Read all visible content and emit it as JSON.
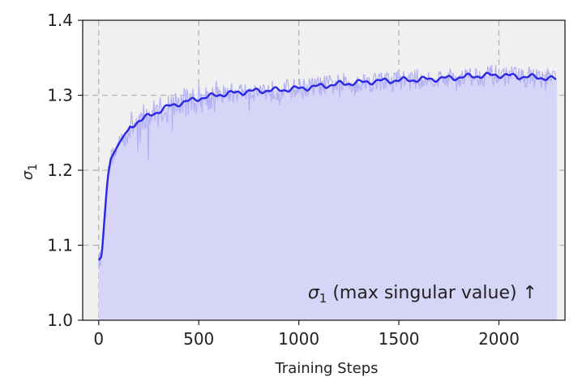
{
  "chart_data": {
    "type": "line",
    "xlabel": "Training Steps",
    "ylabel_symbol": "σ",
    "ylabel_subscript": "1",
    "annotation": {
      "symbol": "σ",
      "subscript": "1",
      "text": " (max singular value)  ↑"
    },
    "xlim": [
      -80,
      2330
    ],
    "ylim": [
      1.0,
      1.4
    ],
    "xticks": [
      0,
      500,
      1000,
      1500,
      2000
    ],
    "yticks": [
      1.0,
      1.1,
      1.2,
      1.3,
      1.4
    ],
    "xtick_labels": [
      "0",
      "500",
      "1000",
      "1500",
      "2000"
    ],
    "ytick_labels": [
      "1.0",
      "1.1",
      "1.2",
      "1.3",
      "1.4"
    ],
    "grid": true,
    "colors": {
      "background": "#f0f0f0",
      "fill": "#d6d4f7",
      "raw_line": "#b3b0f5",
      "smoothed_line": "#2a28e6",
      "grid": "#b5b5b5"
    },
    "series": [
      {
        "x": [
          0,
          15,
          30,
          45,
          60,
          80,
          100,
          130,
          160,
          200,
          250,
          300,
          350,
          400,
          450,
          500,
          550,
          600,
          650,
          700,
          800,
          900,
          1000,
          1100,
          1200,
          1300,
          1400,
          1500,
          1600,
          1700,
          1800,
          1900,
          2000,
          2100,
          2200,
          2290
        ],
        "y": [
          1.08,
          1.085,
          1.14,
          1.19,
          1.215,
          1.225,
          1.235,
          1.248,
          1.258,
          1.266,
          1.272,
          1.279,
          1.285,
          1.289,
          1.292,
          1.296,
          1.298,
          1.301,
          1.302,
          1.304,
          1.306,
          1.307,
          1.309,
          1.312,
          1.315,
          1.317,
          1.319,
          1.32,
          1.321,
          1.322,
          1.324,
          1.326,
          1.327,
          1.325,
          1.324,
          1.321
        ]
      }
    ]
  }
}
